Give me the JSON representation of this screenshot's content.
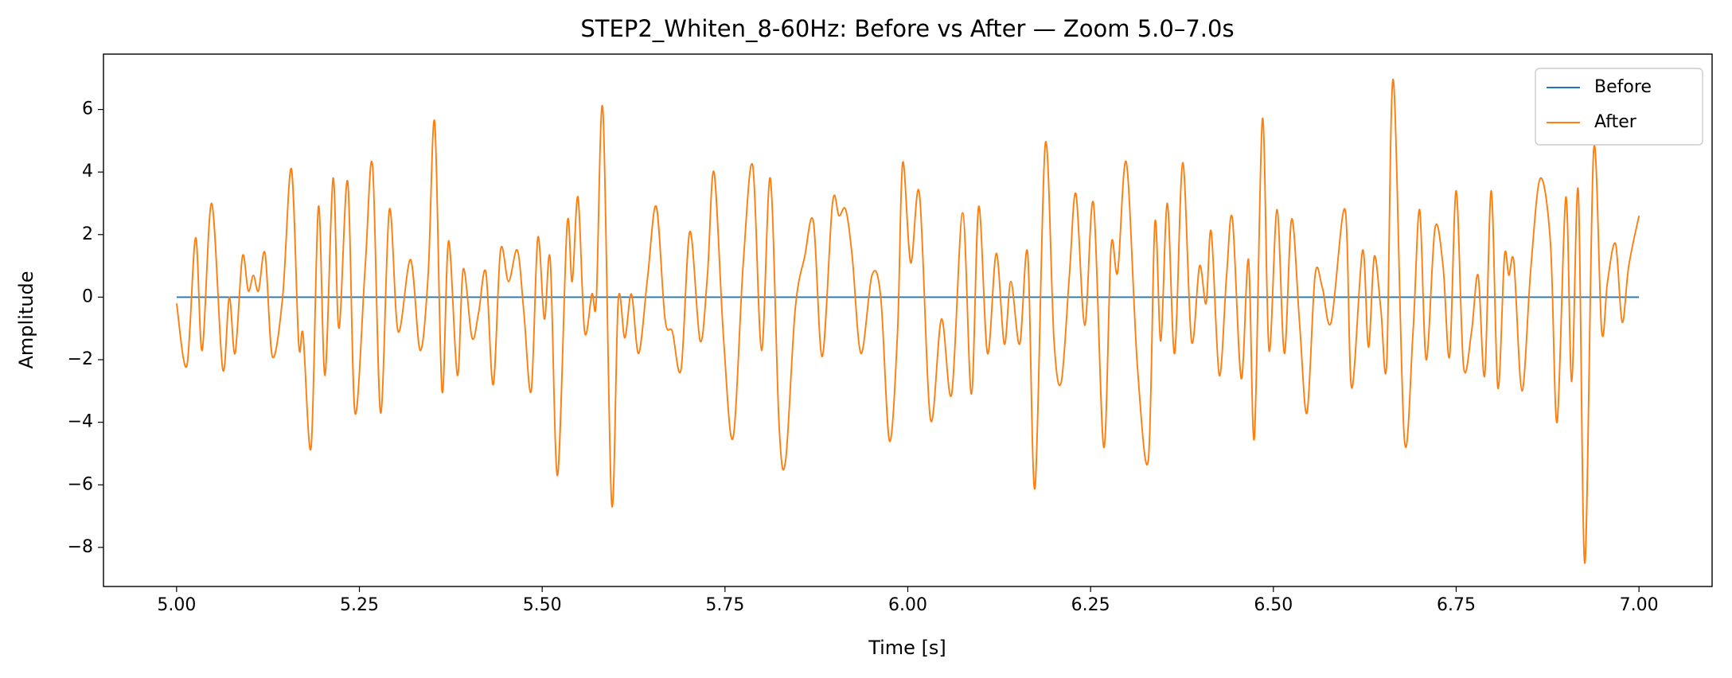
{
  "chart_data": {
    "type": "line",
    "title": "STEP2_Whiten_8-60Hz: Before vs After — Zoom 5.0–7.0s",
    "x_label": "Time [s]",
    "y_label": "Amplitude",
    "xlim": [
      4.9,
      7.1
    ],
    "ylim": [
      -9.25,
      7.77
    ],
    "xticks": [
      {
        "value": 5,
        "label": "5.00"
      },
      {
        "value": 5.25,
        "label": "5.25"
      },
      {
        "value": 5.5,
        "label": "5.50"
      },
      {
        "value": 5.75,
        "label": "5.75"
      },
      {
        "value": 6,
        "label": "6.00"
      },
      {
        "value": 6.25,
        "label": "6.25"
      },
      {
        "value": 6.5,
        "label": "6.50"
      },
      {
        "value": 6.75,
        "label": "6.75"
      },
      {
        "value": 7,
        "label": "7.00"
      }
    ],
    "yticks": [
      {
        "value": -8,
        "label": "−8"
      },
      {
        "value": -6,
        "label": "−6"
      },
      {
        "value": -4,
        "label": "−4"
      },
      {
        "value": -2,
        "label": "−2"
      },
      0,
      2,
      4,
      6
    ],
    "grid": false,
    "legend": "upper right",
    "series": [
      {
        "name": "Before",
        "color": "#1f77b4",
        "x": [
          5.0,
          7.0
        ],
        "values": [
          0,
          0
        ]
      },
      {
        "name": "After",
        "color": "#ff7f0e",
        "x": [
          5.0,
          5.014,
          5.026,
          5.035,
          5.048,
          5.063,
          5.072,
          5.08,
          5.09,
          5.098,
          5.105,
          5.112,
          5.121,
          5.131,
          5.145,
          5.157,
          5.167,
          5.173,
          5.184,
          5.194,
          5.203,
          5.214,
          5.222,
          5.234,
          5.244,
          5.258,
          5.268,
          5.279,
          5.291,
          5.303,
          5.32,
          5.333,
          5.344,
          5.353,
          5.363,
          5.372,
          5.384,
          5.392,
          5.404,
          5.413,
          5.423,
          5.433,
          5.443,
          5.454,
          5.466,
          5.475,
          5.485,
          5.494,
          5.503,
          5.511,
          5.521,
          5.534,
          5.541,
          5.549,
          5.558,
          5.568,
          5.574,
          5.583,
          5.595,
          5.604,
          5.613,
          5.622,
          5.632,
          5.644,
          5.656,
          5.668,
          5.678,
          5.69,
          5.702,
          5.716,
          5.726,
          5.735,
          5.748,
          5.761,
          5.775,
          5.788,
          5.8,
          5.812,
          5.824,
          5.833,
          5.846,
          5.859,
          5.871,
          5.883,
          5.897,
          5.906,
          5.915,
          5.924,
          5.936,
          5.951,
          5.963,
          5.975,
          5.986,
          5.993,
          6.004,
          6.016,
          6.031,
          6.046,
          6.06,
          6.075,
          6.087,
          6.097,
          6.109,
          6.121,
          6.132,
          6.141,
          6.153,
          6.164,
          6.174,
          6.188,
          6.2,
          6.21,
          6.221,
          6.23,
          6.242,
          6.254,
          6.268,
          6.278,
          6.287,
          6.299,
          6.314,
          6.329,
          6.338,
          6.346,
          6.355,
          6.365,
          6.376,
          6.388,
          6.399,
          6.408,
          6.415,
          6.426,
          6.436,
          6.444,
          6.456,
          6.466,
          6.474,
          6.485,
          6.494,
          6.505,
          6.515,
          6.525,
          6.536,
          6.546,
          6.557,
          6.567,
          6.579,
          6.598,
          6.607,
          6.622,
          6.63,
          6.638,
          6.647,
          6.655,
          6.664,
          6.679,
          6.691,
          6.7,
          6.709,
          6.721,
          6.732,
          6.741,
          6.75,
          6.76,
          6.771,
          6.78,
          6.789,
          6.798,
          6.807,
          6.816,
          6.822,
          6.829,
          6.84,
          6.852,
          6.865,
          6.879,
          6.888,
          6.9,
          6.908,
          6.917,
          6.926,
          6.938,
          6.949,
          6.957,
          6.968,
          6.977,
          6.986,
          7.0
        ],
        "values": [
          -0.2,
          -2.2,
          1.9,
          -1.7,
          3.0,
          -2.3,
          0,
          -1.8,
          1.3,
          0.2,
          0.7,
          0.2,
          1.4,
          -1.9,
          0,
          4.1,
          -1.5,
          -1.2,
          -4.8,
          2.9,
          -2.5,
          3.8,
          -1.0,
          3.7,
          -3.7,
          1.0,
          4.2,
          -3.7,
          2.8,
          -1.1,
          1.2,
          -1.7,
          0.7,
          5.6,
          -3.0,
          1.8,
          -2.5,
          0.9,
          -1.3,
          -0.5,
          0.8,
          -2.8,
          1.5,
          0.5,
          1.5,
          -0.5,
          -3.0,
          1.9,
          -0.7,
          1.2,
          -5.7,
          2.3,
          0.5,
          3.2,
          -1.1,
          0.1,
          -0.1,
          6.0,
          -6.6,
          -0.1,
          -1.3,
          0.1,
          -1.8,
          0.6,
          2.9,
          -0.7,
          -1.1,
          -2.3,
          2.1,
          -1.4,
          0.7,
          4.0,
          -1.3,
          -4.5,
          1.1,
          4.2,
          -1.7,
          3.8,
          -4.1,
          -5.2,
          -0.4,
          1.3,
          2.4,
          -1.9,
          3.0,
          2.6,
          2.8,
          1.3,
          -1.8,
          0.7,
          0,
          -4.6,
          -1.1,
          4.3,
          1.1,
          3.3,
          -3.9,
          -0.7,
          -3.1,
          2.7,
          -3.1,
          2.9,
          -1.8,
          1.4,
          -1.5,
          0.5,
          -1.5,
          1.4,
          -6.1,
          4.9,
          -1.4,
          -2.7,
          0.7,
          3.3,
          -0.9,
          3.0,
          -4.8,
          1.6,
          0.8,
          4.3,
          -2.2,
          -5.2,
          2.4,
          -1.4,
          3.0,
          -1.8,
          4.3,
          -1.4,
          1.0,
          -0.2,
          2.1,
          -2.5,
          0.7,
          2.5,
          -2.6,
          1.2,
          -4.5,
          5.7,
          -1.7,
          2.8,
          -1.8,
          2.5,
          -0.9,
          -3.7,
          0.7,
          0.3,
          -0.8,
          2.8,
          -2.9,
          1.5,
          -1.6,
          1.3,
          -0.4,
          -2.1,
          6.95,
          -4.5,
          -1.1,
          2.8,
          -2.0,
          2.2,
          1.0,
          -1.9,
          3.4,
          -2.2,
          -1.1,
          0.7,
          -2.5,
          3.4,
          -2.9,
          1.3,
          0.7,
          1.1,
          -3.0,
          0.9,
          3.8,
          1.7,
          -4.0,
          3.2,
          -2.7,
          3.4,
          -8.5,
          4.7,
          -1.1,
          0.5,
          1.7,
          -0.8,
          1.0,
          2.6
        ]
      }
    ]
  }
}
